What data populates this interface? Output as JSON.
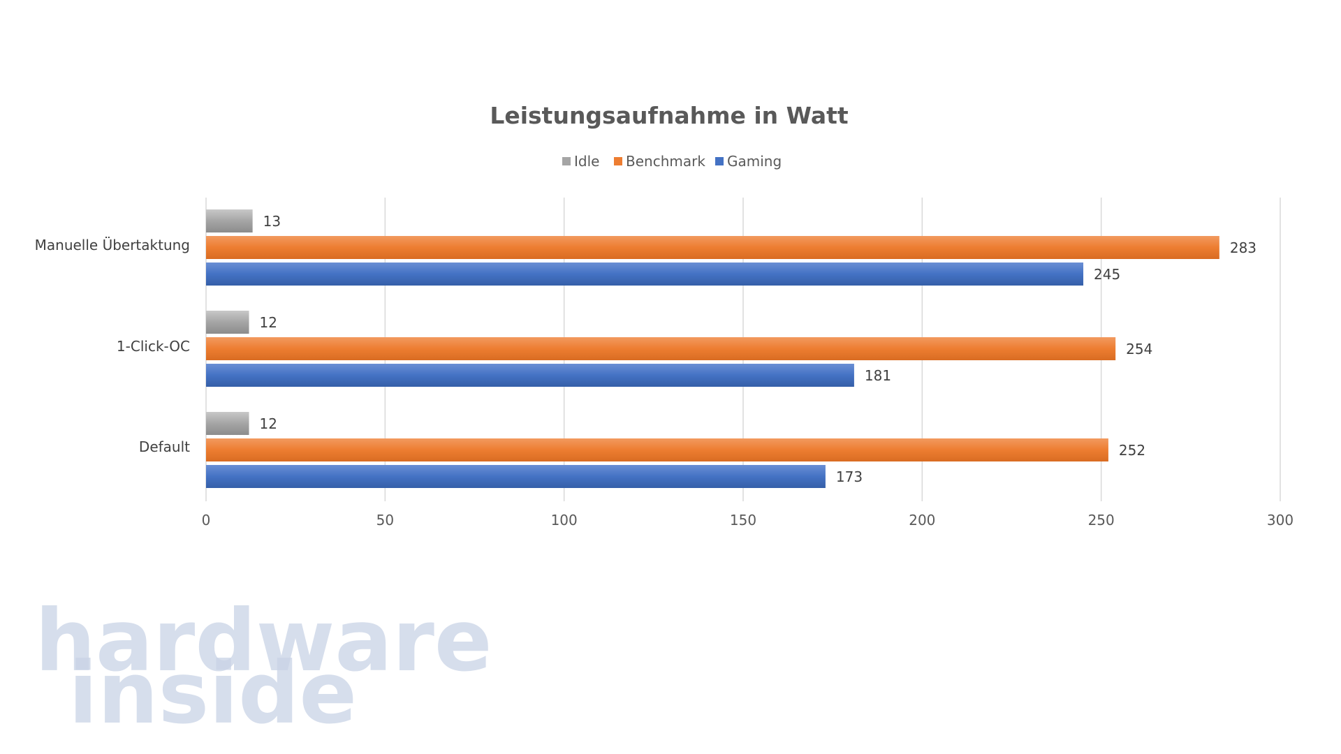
{
  "chart_data": {
    "type": "bar",
    "orientation": "horizontal",
    "title": "Leistungsaufnahme in Watt",
    "categories": [
      "Manuelle Übertaktung",
      "1-Click-OC",
      "Default"
    ],
    "series": [
      {
        "name": "Idle",
        "color": "#a5a5a5",
        "values": [
          13,
          12,
          12
        ]
      },
      {
        "name": "Benchmark",
        "color": "#ed7d31",
        "values": [
          283,
          254,
          252
        ]
      },
      {
        "name": "Gaming",
        "color": "#4472c4",
        "values": [
          245,
          181,
          173
        ]
      }
    ],
    "xlim": [
      0,
      300
    ],
    "xticks": [
      "0",
      "50",
      "100",
      "150",
      "200",
      "250",
      "300"
    ],
    "grid": true,
    "legend_position": "top-center",
    "data_labels": true
  },
  "watermark": {
    "line1": "hardware",
    "line2": "inside"
  }
}
